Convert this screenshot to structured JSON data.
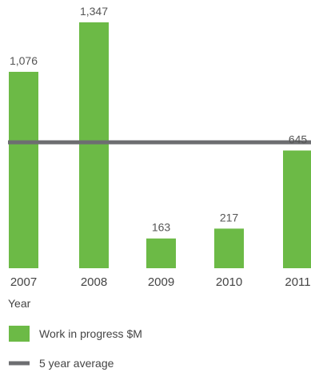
{
  "chart_data": {
    "type": "bar",
    "categories": [
      "2007",
      "2008",
      "2009",
      "2010",
      "2011"
    ],
    "series": [
      {
        "name": "Work in progress $M",
        "values": [
          1076,
          1347,
          163,
          217,
          645
        ]
      }
    ],
    "value_labels": [
      "1,076",
      "1,347",
      "163",
      "217",
      "645"
    ],
    "reference_line": {
      "name": "5 year average",
      "value": 690
    },
    "xlabel": "Year",
    "ylim": [
      0,
      1347
    ],
    "grid": false,
    "legend_position": "bottom-left",
    "colors": {
      "bar": "#6cba46",
      "average_line": "#6d6e71"
    }
  }
}
